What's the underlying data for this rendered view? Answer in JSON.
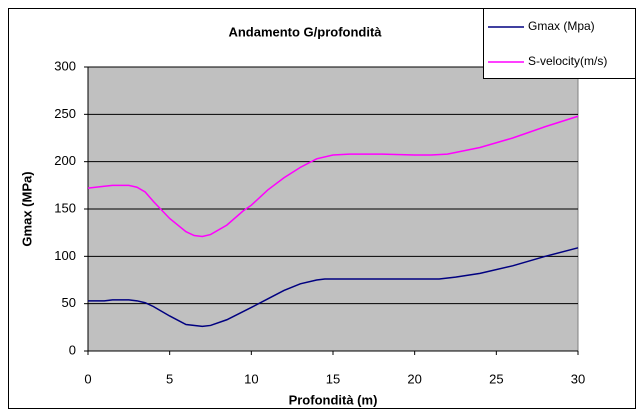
{
  "chart_data": {
    "type": "line",
    "title": "Andamento G/profondità",
    "xlabel": "Profondità (m)",
    "ylabel": "Gmax (MPa)",
    "xlim": [
      0,
      30
    ],
    "xticks": [
      0,
      5,
      10,
      15,
      20,
      25,
      30
    ],
    "ylim": [
      0,
      300
    ],
    "yticks": [
      0,
      50,
      100,
      150,
      200,
      250,
      300
    ],
    "grid": true,
    "legend": "top-right",
    "series": [
      {
        "name": "Gmax (Mpa)",
        "color": "#000080",
        "x": [
          0,
          1,
          1.5,
          2.5,
          3,
          3.5,
          4,
          5,
          6,
          7,
          7.5,
          8.5,
          10,
          11,
          12,
          13,
          14,
          14.5,
          16,
          18,
          20,
          21.5,
          22.5,
          24,
          26,
          28,
          30
        ],
        "values": [
          53,
          53,
          54,
          54,
          53,
          51,
          47,
          37,
          28,
          26,
          27,
          33,
          46,
          55,
          64,
          71,
          75,
          76,
          76,
          76,
          76,
          76,
          78,
          82,
          90,
          100,
          109
        ]
      },
      {
        "name": "S-velocity(m/s)",
        "color": "#ff00ff",
        "x": [
          0,
          1,
          1.5,
          2.5,
          3,
          3.5,
          4,
          5,
          6,
          6.5,
          7,
          7.5,
          8.5,
          9.5,
          10,
          11,
          12,
          13,
          14,
          15,
          16,
          18,
          20,
          21,
          22,
          24,
          26,
          28,
          30
        ],
        "values": [
          172,
          174,
          175,
          175,
          173,
          168,
          158,
          140,
          126,
          122,
          121,
          123,
          133,
          148,
          154,
          170,
          183,
          194,
          203,
          207,
          208,
          208,
          207,
          207,
          208,
          215,
          225,
          237,
          248
        ]
      }
    ]
  }
}
